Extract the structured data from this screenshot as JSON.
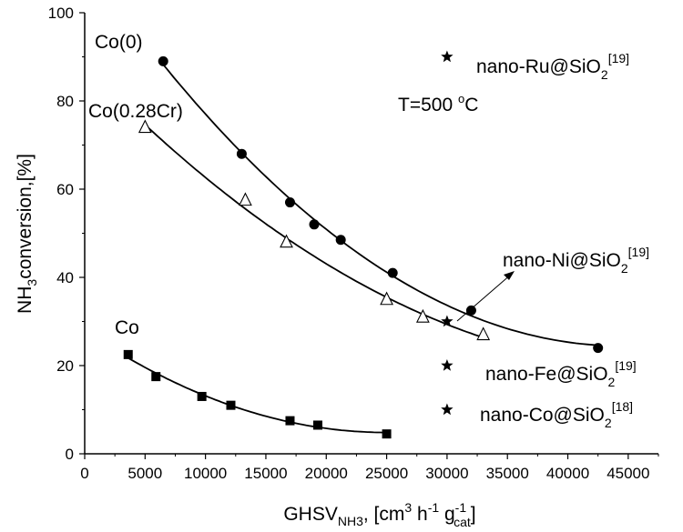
{
  "chart_data": {
    "type": "scatter",
    "title": "",
    "xlabel": {
      "main": "GHSV",
      "sub": "NH3",
      "rest_a": ", [cm",
      "sup_a": "3",
      "rest_b": " h",
      "sup_b": "-1",
      "rest_c": " g",
      "sup_c": "-1",
      "sub_c": "cat",
      "rest_d": "]"
    },
    "ylabel": {
      "main": "NH",
      "sub": "3",
      "rest": "conversion,[%]"
    },
    "xlim": [
      0,
      47500
    ],
    "ylim": [
      0,
      100
    ],
    "xticks": [
      0,
      5000,
      10000,
      15000,
      20000,
      25000,
      30000,
      35000,
      40000,
      45000
    ],
    "yticks": [
      0,
      20,
      40,
      60,
      80,
      100
    ],
    "xtick_labels": [
      "0",
      "5000",
      "10000",
      "15000",
      "20000",
      "25000",
      "30000",
      "35000",
      "40000",
      "45000"
    ],
    "ytick_labels": [
      "0",
      "20",
      "40",
      "60",
      "80",
      "100"
    ],
    "series": [
      {
        "name": "Co(0)",
        "marker": "circle",
        "x": [
          6500,
          13000,
          17000,
          19000,
          21200,
          25500,
          32000,
          42500
        ],
        "y": [
          89,
          68,
          57,
          52,
          48.5,
          41,
          32.5,
          24
        ]
      },
      {
        "name": "Co(0.28Cr)",
        "marker": "triangle",
        "x": [
          5000,
          13300,
          16700,
          25000,
          28000,
          33000
        ],
        "y": [
          74,
          57.5,
          48,
          35,
          31,
          27
        ]
      },
      {
        "name": "Co",
        "marker": "square",
        "x": [
          3600,
          5900,
          9700,
          12100,
          17000,
          19300,
          25000
        ],
        "y": [
          22.5,
          17.5,
          13,
          11,
          7.5,
          6.5,
          4.5
        ]
      }
    ],
    "reference_points": [
      {
        "name": "nano-Ru@SiO2",
        "label": "nano-Ru@SiO",
        "sub": "2",
        "ref": "[19]",
        "x": 30000,
        "y": 90
      },
      {
        "name": "nano-Ni@SiO2",
        "label": "nano-Ni@SiO",
        "sub": "2",
        "ref": "[19]",
        "x": 30000,
        "y": 30
      },
      {
        "name": "nano-Fe@SiO2",
        "label": "nano-Fe@SiO",
        "sub": "2",
        "ref": "[19]",
        "x": 30000,
        "y": 20
      },
      {
        "name": "nano-Co@SiO2",
        "label": "nano-Co@SiO",
        "sub": "2",
        "ref": "[18]",
        "x": 30000,
        "y": 10
      }
    ],
    "annotations": [
      {
        "text": "T=500 ",
        "sup": "o",
        "tail": "C"
      }
    ],
    "grid": false,
    "legend": "none"
  }
}
